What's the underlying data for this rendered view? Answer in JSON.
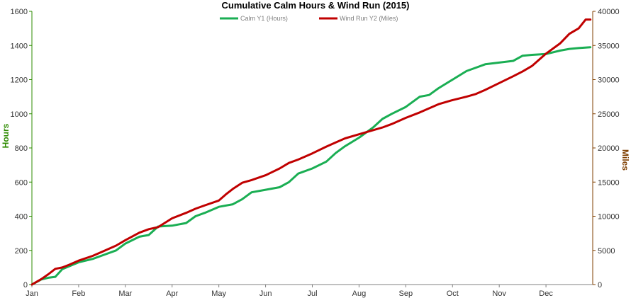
{
  "chart_data": {
    "type": "line",
    "title": "Cumulative Calm  Hours & Wind Run (2015)",
    "xlabel": "",
    "categories": [
      "Jan",
      "Feb",
      "Mar",
      "Apr",
      "May",
      "Jun",
      "Jul",
      "Aug",
      "Sep",
      "Oct",
      "Nov",
      "Dec"
    ],
    "y1": {
      "label": "Hours",
      "ylim": [
        0,
        1600
      ],
      "ticks": [
        0,
        200,
        400,
        600,
        800,
        1000,
        1200,
        1400,
        1600
      ],
      "color": "#2e8b00"
    },
    "y2": {
      "label": "Miles",
      "ylim": [
        0,
        40000
      ],
      "ticks": [
        0,
        5000,
        10000,
        15000,
        20000,
        25000,
        30000,
        35000,
        40000
      ],
      "color": "#7f3f00"
    },
    "legend_position": "top-center",
    "grid": false,
    "series": [
      {
        "name": "Calm Y1 (Hours)",
        "axis": "y1",
        "color": "#1aae53",
        "x": [
          0,
          0.2,
          0.35,
          0.5,
          0.65,
          1.0,
          1.3,
          1.5,
          1.8,
          2.0,
          2.3,
          2.5,
          2.7,
          3.0,
          3.3,
          3.5,
          3.7,
          4.0,
          4.3,
          4.5,
          4.7,
          5.0,
          5.3,
          5.5,
          5.7,
          6.0,
          6.3,
          6.5,
          6.7,
          7.0,
          7.3,
          7.5,
          7.7,
          8.0,
          8.3,
          8.5,
          8.7,
          9.0,
          9.3,
          9.5,
          9.7,
          10.0,
          10.3,
          10.5,
          10.7,
          11.0,
          11.3,
          11.5,
          11.7,
          11.95
        ],
        "values": [
          0,
          30,
          40,
          45,
          90,
          130,
          150,
          170,
          200,
          240,
          280,
          290,
          340,
          345,
          360,
          400,
          420,
          455,
          470,
          500,
          540,
          555,
          570,
          600,
          650,
          680,
          720,
          770,
          810,
          860,
          920,
          970,
          1000,
          1040,
          1100,
          1110,
          1150,
          1200,
          1250,
          1270,
          1290,
          1300,
          1310,
          1340,
          1345,
          1350,
          1370,
          1380,
          1385,
          1390
        ]
      },
      {
        "name": "Wind Run Y2 (Miles)",
        "axis": "y2",
        "color": "#c00000",
        "x": [
          0,
          0.2,
          0.35,
          0.5,
          0.65,
          0.8,
          1.0,
          1.3,
          1.5,
          1.8,
          2.0,
          2.3,
          2.5,
          2.7,
          3.0,
          3.3,
          3.5,
          3.7,
          4.0,
          4.15,
          4.3,
          4.5,
          4.7,
          5.0,
          5.3,
          5.5,
          5.7,
          6.0,
          6.3,
          6.5,
          6.7,
          7.0,
          7.3,
          7.5,
          7.7,
          8.0,
          8.3,
          8.5,
          8.7,
          9.0,
          9.3,
          9.5,
          9.7,
          10.0,
          10.3,
          10.5,
          10.7,
          11.0,
          11.3,
          11.5,
          11.7,
          11.85,
          11.95
        ],
        "values": [
          0,
          800,
          1500,
          2300,
          2500,
          2900,
          3500,
          4200,
          4800,
          5700,
          6500,
          7600,
          8100,
          8400,
          9700,
          10500,
          11100,
          11600,
          12300,
          13200,
          14000,
          14900,
          15300,
          16000,
          17000,
          17800,
          18300,
          19200,
          20200,
          20800,
          21400,
          22000,
          22600,
          23000,
          23500,
          24400,
          25200,
          25800,
          26400,
          27000,
          27500,
          27900,
          28500,
          29500,
          30500,
          31200,
          32000,
          33800,
          35300,
          36700,
          37500,
          38800,
          38800
        ]
      }
    ]
  }
}
